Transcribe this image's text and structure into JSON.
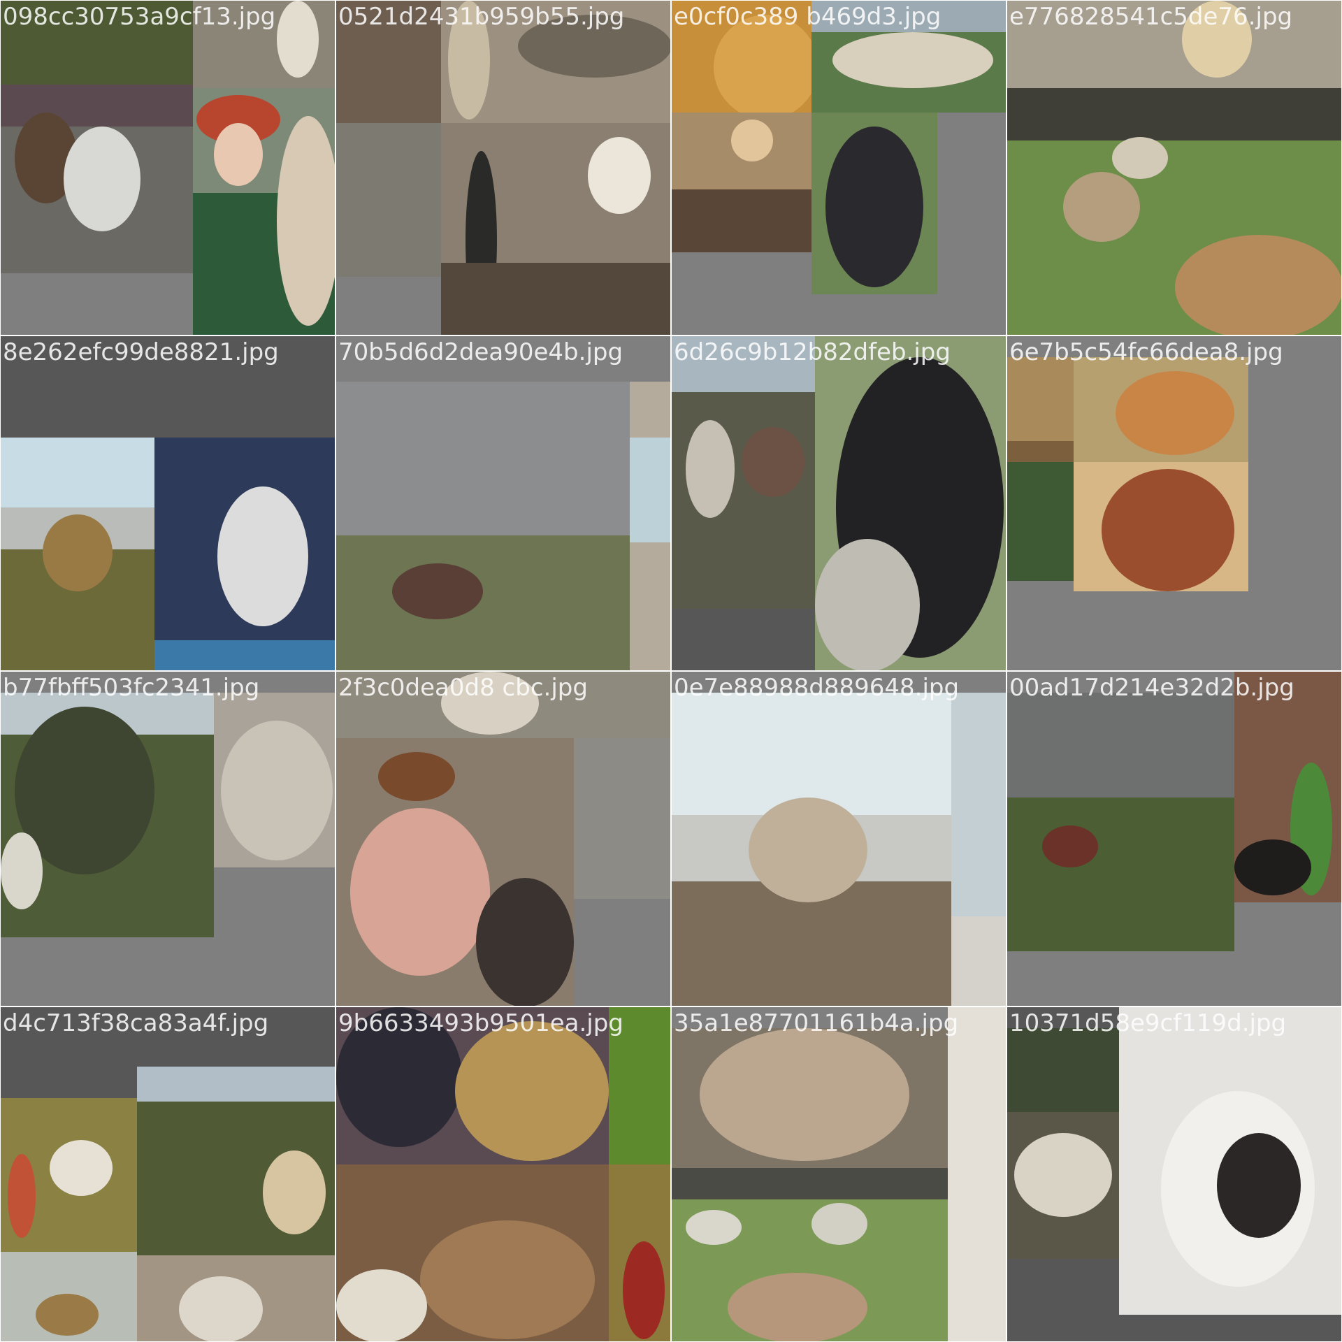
{
  "tiles": [
    {
      "label": "098cc30753a9cf13.jpg",
      "background": "#7f7f7f"
    },
    {
      "label": "0521d2431b959b55.jpg",
      "background": "#7f7f7f"
    },
    {
      "label": "e0cf0c389 b469d3.jpg",
      "background": "#7f7f7f"
    },
    {
      "label": "e776828541c5de76.jpg",
      "background": "#7f7f7f"
    },
    {
      "label": "8e262efc99de8821.jpg",
      "background": "#575757"
    },
    {
      "label": "70b5d6d2dea90e4b.jpg",
      "background": "#7f7f7f"
    },
    {
      "label": "6d26c9b12b82dfeb.jpg",
      "background": "#575757"
    },
    {
      "label": "6e7b5c54fc66dea8.jpg",
      "background": "#7f7f7f"
    },
    {
      "label": "b77fbff503fc2341.jpg",
      "background": "#7f7f7f"
    },
    {
      "label": "2f3c0dea0d8 cbc.jpg",
      "background": "#7f7f7f"
    },
    {
      "label": "0e7e88988d889648.jpg",
      "background": "#7f7f7f"
    },
    {
      "label": "00ad17d214e32d2b.jpg",
      "background": "#7f7f7f"
    },
    {
      "label": "d4c713f38ca83a4f.jpg",
      "background": "#575757"
    },
    {
      "label": "9b6633493b9501ea.jpg",
      "background": "#7f7f7f"
    },
    {
      "label": "35a1e87701161b4a.jpg",
      "background": "#7f7f7f"
    },
    {
      "label": "10371d58e9cf119d.jpg",
      "background": "#575757"
    }
  ]
}
